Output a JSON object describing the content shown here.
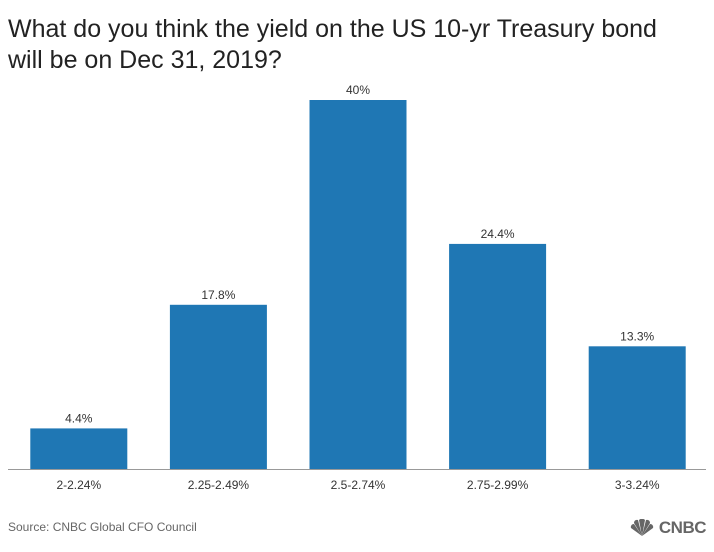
{
  "chart_data": {
    "type": "bar",
    "title": "What do you think the yield on the US 10-yr Treasury bond will be on Dec 31, 2019?",
    "categories": [
      "2-2.24%",
      "2.25-2.49%",
      "2.5-2.74%",
      "2.75-2.99%",
      "3-3.24%"
    ],
    "values": [
      4.4,
      17.8,
      40,
      24.4,
      13.3
    ],
    "value_labels": [
      "4.4%",
      "17.8%",
      "40%",
      "24.4%",
      "13.3%"
    ],
    "ylim": [
      0,
      40
    ],
    "bar_color": "#1f77b4",
    "grid": false
  },
  "source": "Source: CNBC Global CFO Council",
  "logo": {
    "text": "CNBC",
    "icon": "peacock-icon"
  }
}
